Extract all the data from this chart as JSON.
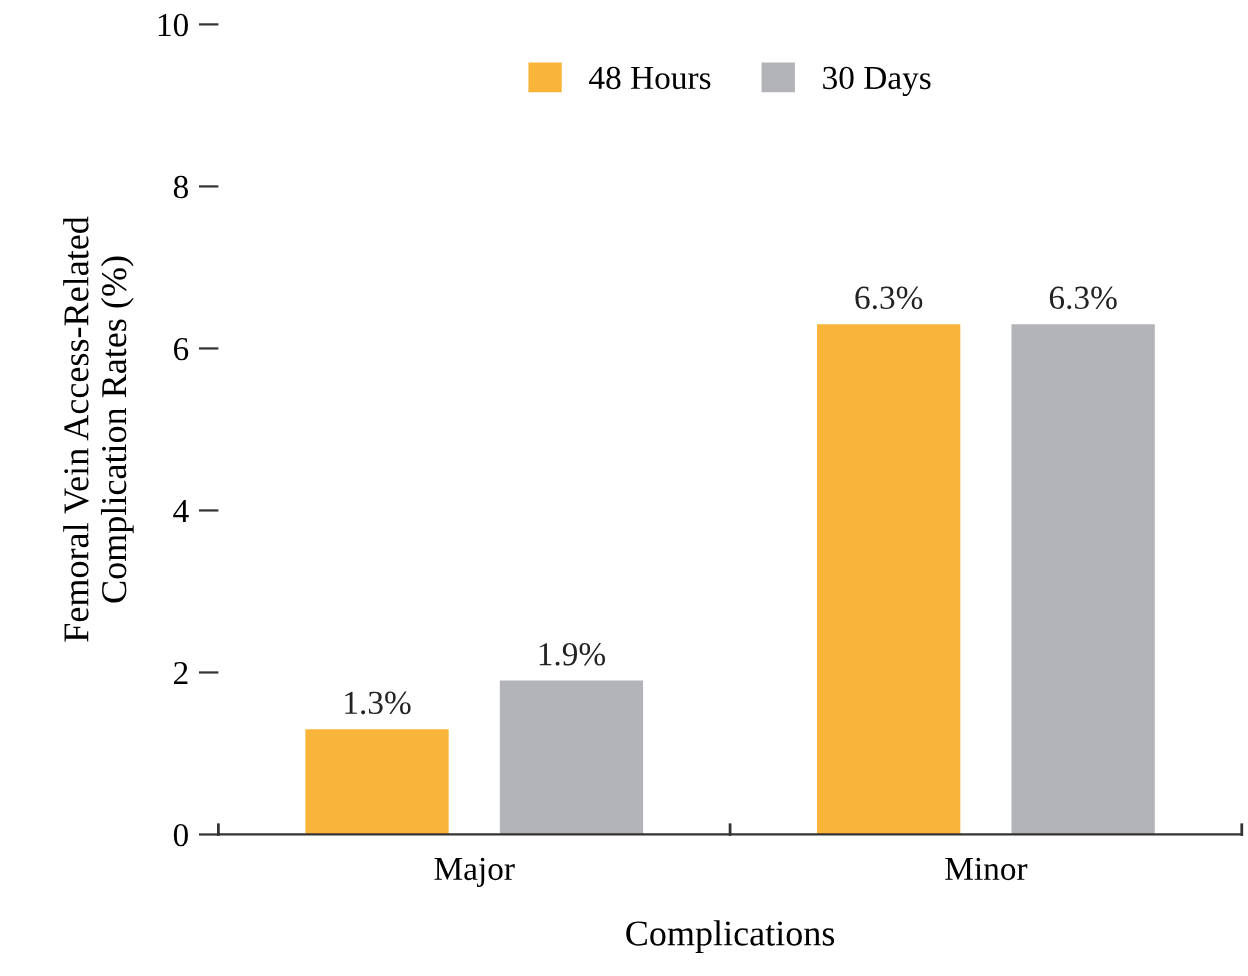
{
  "chart_data": {
    "type": "bar",
    "xlabel": "Complications",
    "ylabel": "Femoral Vein Access-Related\nComplication Rates (%)",
    "categories": [
      "Major",
      "Minor"
    ],
    "series": [
      {
        "name": "48 Hours",
        "color": "#f9b43a",
        "values": [
          1.3,
          6.3
        ],
        "value_labels": [
          "1.3%",
          "6.3%"
        ]
      },
      {
        "name": "30 Days",
        "color": "#b3b4b7",
        "values": [
          1.9,
          6.3
        ],
        "value_labels": [
          "1.9%",
          "6.3%"
        ]
      }
    ],
    "ylim": [
      0,
      10
    ],
    "yticks": [
      0,
      2,
      4,
      6,
      8,
      10
    ],
    "grid": false,
    "legend": "top"
  }
}
